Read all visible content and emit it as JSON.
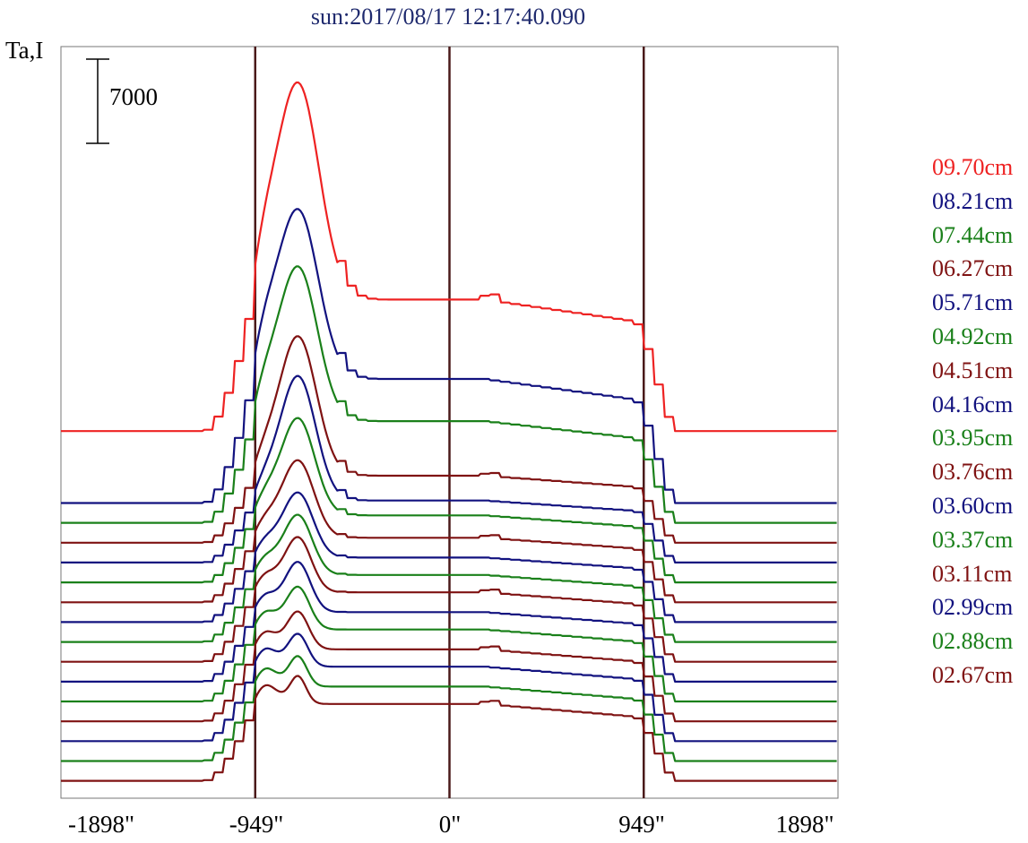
{
  "title": "sun:2017/08/17 12:17:40.090",
  "ylabel": "Ta,I",
  "scale_bar_label": "7000",
  "xtick_labels": [
    "-1898\"",
    "-949\"",
    "0\"",
    "949\"",
    "1898\""
  ],
  "colors": {
    "red": "#ee2222",
    "blue": "#12127f",
    "green": "#1a801a",
    "maroon": "#7f1212",
    "axis_line": "#4a1a1a"
  },
  "chart_data": {
    "type": "line",
    "title": "sun:2017/08/17 12:17:40.090",
    "xlabel": "",
    "ylabel": "Ta,I",
    "xlim": [
      -1898,
      1898
    ],
    "xticks": [
      -1898,
      -949,
      0,
      949,
      1898
    ],
    "vertical_lines": [
      -949,
      0,
      949
    ],
    "scale_bar": 7000,
    "stacked_offsets": true,
    "series": [
      {
        "name": "09.70cm",
        "color": "#ee2222",
        "baseline": 0,
        "disk_level": 5300,
        "peak": 14000
      },
      {
        "name": "08.21cm",
        "color": "#12127f",
        "baseline": -2900,
        "disk_level": 2100,
        "peak": 8900
      },
      {
        "name": "07.44cm",
        "color": "#1a801a",
        "baseline": -3700,
        "disk_level": 400,
        "peak": 6600
      },
      {
        "name": "06.27cm",
        "color": "#7f1212",
        "baseline": -4500,
        "disk_level": -1800,
        "peak": 3800
      },
      {
        "name": "05.71cm",
        "color": "#12127f",
        "baseline": -5300,
        "disk_level": -2800,
        "peak": 2200
      },
      {
        "name": "04.92cm",
        "color": "#1a801a",
        "baseline": -6100,
        "disk_level": -3400,
        "peak": 500
      },
      {
        "name": "04.51cm",
        "color": "#7f1212",
        "baseline": -6900,
        "disk_level": -4300,
        "peak": -1200
      },
      {
        "name": "04.16cm",
        "color": "#12127f",
        "baseline": -7700,
        "disk_level": -5100,
        "peak": -2500
      },
      {
        "name": "03.95cm",
        "color": "#1a801a",
        "baseline": -8500,
        "disk_level": -5800,
        "peak": -3400
      },
      {
        "name": "03.76cm",
        "color": "#7f1212",
        "baseline": -9300,
        "disk_level": -6500,
        "peak": -4300
      },
      {
        "name": "03.60cm",
        "color": "#12127f",
        "baseline": -10100,
        "disk_level": -7300,
        "peak": -5300
      },
      {
        "name": "03.37cm",
        "color": "#1a801a",
        "baseline": -10900,
        "disk_level": -8000,
        "peak": -6300
      },
      {
        "name": "03.11cm",
        "color": "#7f1212",
        "baseline": -11700,
        "disk_level": -8800,
        "peak": -7300
      },
      {
        "name": "02.99cm",
        "color": "#12127f",
        "baseline": -12500,
        "disk_level": -9500,
        "peak": -8200
      },
      {
        "name": "02.88cm",
        "color": "#1a801a",
        "baseline": -13300,
        "disk_level": -10300,
        "peak": -9100
      },
      {
        "name": "02.67cm",
        "color": "#7f1212",
        "baseline": -14100,
        "disk_level": -11000,
        "peak": -9900
      }
    ],
    "ylim": [
      -14800,
      15500
    ]
  }
}
